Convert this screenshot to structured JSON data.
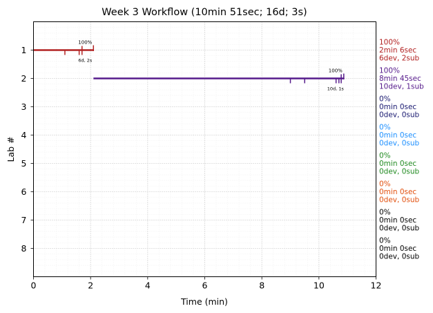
{
  "chart_data": {
    "type": "line",
    "title": "Week 3 Workflow (10min 51sec; 16d; 3s)",
    "xlabel": "Time (min)",
    "ylabel": "Lab #",
    "xlim": [
      0,
      12
    ],
    "ylim": [
      0,
      9
    ],
    "x_ticks": [
      "0",
      "2",
      "4",
      "6",
      "8",
      "10",
      "12"
    ],
    "y_ticks": [
      "1",
      "2",
      "3",
      "4",
      "5",
      "6",
      "7",
      "8"
    ],
    "grid": true,
    "series": [
      {
        "lab": 1,
        "color": "#b22222",
        "start": 0,
        "end": 2.1,
        "dev_ticks": [
          1.1,
          1.6
        ],
        "sub_ticks": [
          1.7
        ],
        "bar_label": "100%",
        "bar_sublabel": "6d, 2s",
        "side_lines": [
          "100%",
          "2min 6sec",
          "6dev, 2sub"
        ]
      },
      {
        "lab": 2,
        "color": "#551a8b",
        "start": 2.1,
        "end": 10.87,
        "dev_ticks": [
          9.0,
          9.5,
          10.6,
          10.7
        ],
        "sub_ticks": [
          10.78
        ],
        "bar_label": "100%",
        "bar_sublabel": "10d, 1s",
        "side_lines": [
          "100%",
          "8min 45sec",
          "10dev, 1sub"
        ]
      },
      {
        "lab": 3,
        "color": "#191970",
        "side_lines": [
          "0%",
          "0min 0sec",
          "0dev, 0sub"
        ]
      },
      {
        "lab": 4,
        "color": "#1e90ff",
        "side_lines": [
          "0%",
          "0min 0sec",
          "0dev, 0sub"
        ]
      },
      {
        "lab": 5,
        "color": "#228b22",
        "side_lines": [
          "0%",
          "0min 0sec",
          "0dev, 0sub"
        ]
      },
      {
        "lab": 6,
        "color": "#e2500e",
        "side_lines": [
          "0%",
          "0min 0sec",
          "0dev, 0sub"
        ]
      },
      {
        "lab": 7,
        "color": "#000000",
        "side_lines": [
          "0%",
          "0min 0sec",
          "0dev, 0sub"
        ]
      },
      {
        "lab": 8,
        "color": "#000000",
        "side_lines": [
          "0%",
          "0min 0sec",
          "0dev, 0sub"
        ]
      }
    ]
  }
}
